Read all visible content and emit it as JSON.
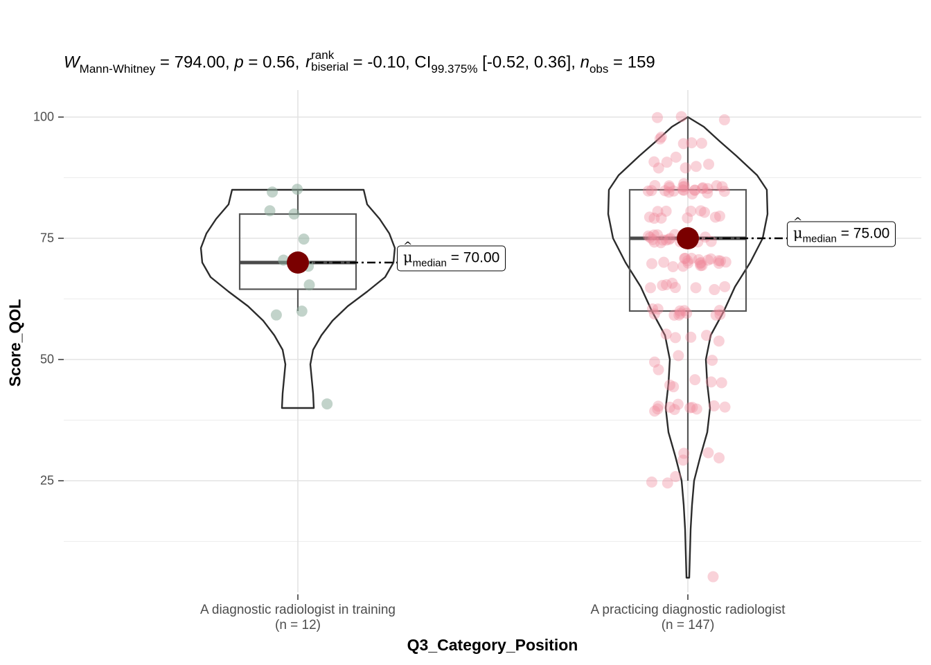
{
  "subtitle": {
    "w_symbol": "W",
    "w_sub": "Mann-Whitney",
    "w_value": " = 794.00, ",
    "p_symbol": "p",
    "p_value": " = 0.56, ",
    "r_symbol": "r",
    "r_sup": "rank",
    "r_sub": "biserial",
    "r_value": " = -0.10, CI",
    "ci_sub": "99.375%",
    "ci_value": " [-0.52, 0.36], ",
    "n_symbol": "n",
    "n_sub": "obs",
    "n_value": " = 159"
  },
  "chart_data": {
    "type": "violin",
    "xlabel": "Q3_Category_Position",
    "ylabel": "Score_QOL",
    "ylim": [
      1,
      105
    ],
    "yticks": [
      25,
      50,
      75,
      100
    ],
    "grid": true,
    "groups": [
      {
        "label": "A diagnostic radiologist in training",
        "n_label": "(n = 12)",
        "color": "#8fae9e",
        "median": 70,
        "box": {
          "q1": 64.5,
          "median": 70,
          "q3": 80,
          "whisker_low": 60,
          "whisker_high": 85
        },
        "violin_range": [
          40,
          85
        ],
        "points": [
          85,
          85,
          80,
          80,
          75,
          70,
          70,
          70,
          66,
          60,
          60,
          40
        ],
        "median_label": "= 70.00",
        "median_sub": "median"
      },
      {
        "label": "A practicing diagnostic radiologist",
        "n_label": "(n = 147)",
        "color": "#f08a9b",
        "median": 75,
        "box": {
          "q1": 60,
          "median": 75,
          "q3": 85,
          "whisker_low": 25,
          "whisker_high": 100
        },
        "violin_range": [
          5,
          100
        ],
        "points": [
          100,
          100,
          100,
          95,
          95,
          95,
          95,
          95,
          92,
          90,
          90,
          90,
          90,
          90,
          90,
          87,
          85,
          85,
          85,
          85,
          85,
          85,
          85,
          85,
          85,
          85,
          85,
          85,
          85,
          85,
          85,
          85,
          85,
          85,
          85,
          85,
          85,
          85,
          80,
          80,
          80,
          80,
          80,
          80,
          80,
          80,
          80,
          80,
          80,
          75,
          75,
          75,
          75,
          75,
          75,
          75,
          75,
          75,
          75,
          75,
          75,
          75,
          75,
          75,
          75,
          75,
          75,
          75,
          75,
          75,
          70,
          70,
          70,
          70,
          70,
          70,
          70,
          70,
          70,
          70,
          70,
          70,
          70,
          70,
          70,
          70,
          70,
          70,
          70,
          70,
          65,
          65,
          65,
          65,
          65,
          65,
          65,
          65,
          60,
          60,
          60,
          60,
          60,
          60,
          60,
          60,
          60,
          60,
          60,
          60,
          55,
          55,
          55,
          55,
          53,
          50,
          50,
          50,
          47.5,
          45,
          45,
          45,
          45,
          45,
          40,
          40,
          40,
          40,
          40,
          40,
          40,
          40,
          40,
          40,
          40,
          30,
          30,
          30,
          30,
          25,
          25,
          25,
          5
        ],
        "median_label": "= 75.00",
        "median_sub": "median"
      }
    ]
  }
}
